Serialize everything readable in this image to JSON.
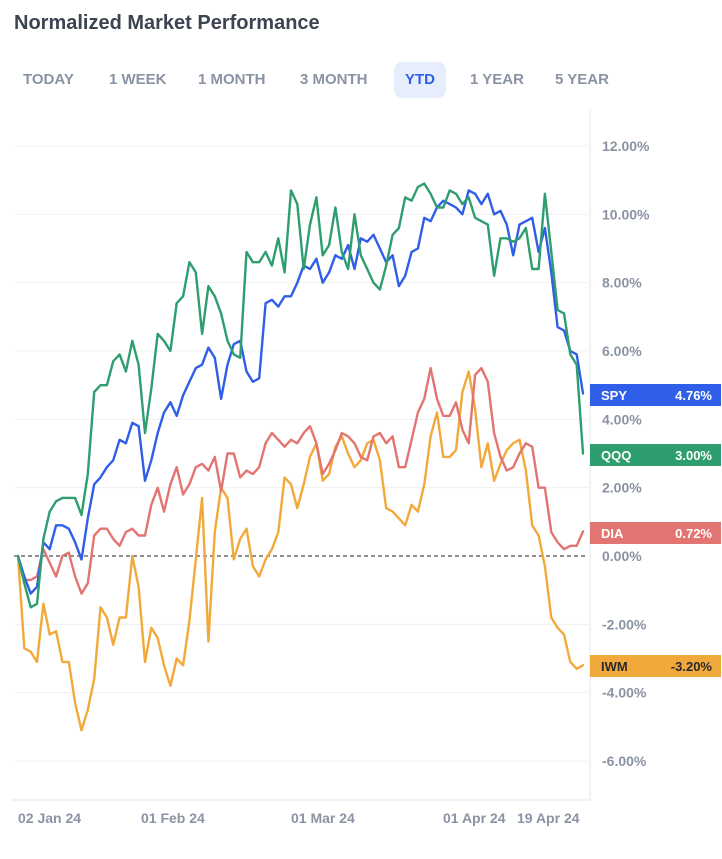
{
  "header": {
    "title": "Normalized Market Performance"
  },
  "tabs": [
    {
      "label": "TODAY",
      "active": false
    },
    {
      "label": "1 WEEK",
      "active": false
    },
    {
      "label": "1 MONTH",
      "active": false
    },
    {
      "label": "3 MONTH",
      "active": false
    },
    {
      "label": "YTD",
      "active": true
    },
    {
      "label": "1 YEAR",
      "active": false
    },
    {
      "label": "5 YEAR",
      "active": false
    }
  ],
  "chart_data": {
    "type": "line",
    "title": "Normalized Market Performance",
    "ylim": [
      -7,
      12.5
    ],
    "y_ticks": [
      12,
      10,
      8,
      6,
      4,
      2,
      0,
      -2,
      -4,
      -6
    ],
    "y_tick_labels": [
      "12.00%",
      "10.00%",
      "8.00%",
      "6.00%",
      "4.00%",
      "2.00%",
      "0.00%",
      "-2.00%",
      "-4.00%",
      "-6.00%"
    ],
    "x_tick_labels": [
      "02 Jan 24",
      "01 Feb 24",
      "01 Mar 24",
      "01 Apr 24",
      "19 Apr 24"
    ],
    "baseline": 0,
    "grid": true,
    "series": [
      {
        "name": "SPY",
        "color": "#2f5ee8",
        "last_label": "4.76%",
        "values": [
          0,
          -0.6,
          -1.1,
          -0.9,
          0.4,
          0.2,
          0.9,
          0.9,
          0.8,
          0.4,
          -0.1,
          1.1,
          2.1,
          2.3,
          2.6,
          2.8,
          3.4,
          3.3,
          3.9,
          3.8,
          2.2,
          2.8,
          3.6,
          4.2,
          4.5,
          4.1,
          4.7,
          5.1,
          5.5,
          5.6,
          6.1,
          5.8,
          4.6,
          5.6,
          6.2,
          6.3,
          5.4,
          5.1,
          5.2,
          7.4,
          7.5,
          7.3,
          7.6,
          7.6,
          8.0,
          8.5,
          8.4,
          8.7,
          8.0,
          8.3,
          8.8,
          8.7,
          9.1,
          8.4,
          9.3,
          9.2,
          9.4,
          9.0,
          8.6,
          8.8,
          7.9,
          8.2,
          8.9,
          9.0,
          9.9,
          9.8,
          10.2,
          10.4,
          10.3,
          10.2,
          10.0,
          10.7,
          10.6,
          10.3,
          10.6,
          10.0,
          10.1,
          9.7,
          8.8,
          9.7,
          9.8,
          9.9,
          8.9,
          9.6,
          8.3,
          6.7,
          6.6,
          6.0,
          5.9,
          4.76
        ]
      },
      {
        "name": "QQQ",
        "color": "#2e9e6f",
        "last_label": "3.00%",
        "values": [
          0,
          -0.8,
          -1.5,
          -1.4,
          0.5,
          1.3,
          1.6,
          1.7,
          1.7,
          1.7,
          1.2,
          2.4,
          4.8,
          5.0,
          5.0,
          5.7,
          5.9,
          5.4,
          6.3,
          5.6,
          3.6,
          4.9,
          6.5,
          6.3,
          6.0,
          7.4,
          7.6,
          8.6,
          8.3,
          6.5,
          7.9,
          7.6,
          7.1,
          6.3,
          5.9,
          5.8,
          8.9,
          8.6,
          8.6,
          8.9,
          8.5,
          9.3,
          8.3,
          10.7,
          10.3,
          8.4,
          9.7,
          10.5,
          8.8,
          9.1,
          10.2,
          8.9,
          8.4,
          10.0,
          8.8,
          8.4,
          8.0,
          7.8,
          8.5,
          9.4,
          9.6,
          10.5,
          10.4,
          10.8,
          10.9,
          10.6,
          10.2,
          10.2,
          10.7,
          10.6,
          10.3,
          10.5,
          9.9,
          9.8,
          9.7,
          8.2,
          9.3,
          9.3,
          9.2,
          9.3,
          9.6,
          8.4,
          8.4,
          10.6,
          8.9,
          7.2,
          7.1,
          5.9,
          5.6,
          3.0
        ]
      },
      {
        "name": "DIA",
        "color": "#e27571",
        "last_label": "0.72%",
        "values": [
          0,
          -0.7,
          -0.7,
          -0.6,
          0.2,
          -0.2,
          -0.6,
          0.0,
          0.1,
          -0.6,
          -1.1,
          -0.8,
          0.6,
          0.8,
          0.8,
          0.5,
          0.3,
          0.7,
          0.8,
          0.6,
          0.6,
          1.5,
          2.0,
          1.3,
          2.1,
          2.6,
          1.8,
          2.1,
          2.6,
          2.7,
          2.5,
          2.9,
          1.9,
          3.0,
          3.0,
          2.3,
          2.5,
          2.4,
          2.6,
          3.3,
          3.6,
          3.4,
          3.2,
          3.4,
          3.3,
          3.6,
          3.8,
          3.3,
          2.4,
          2.7,
          3.1,
          3.6,
          3.5,
          3.3,
          2.9,
          2.8,
          3.5,
          3.6,
          3.3,
          3.5,
          2.6,
          2.6,
          3.4,
          4.2,
          4.6,
          5.5,
          4.6,
          4.1,
          4.1,
          4.5,
          3.7,
          3.3,
          5.3,
          5.5,
          5.1,
          3.6,
          2.9,
          2.5,
          2.6,
          3.0,
          3.3,
          3.2,
          2.0,
          2.0,
          0.7,
          0.4,
          0.2,
          0.3,
          0.3,
          0.72
        ]
      },
      {
        "name": "IWM",
        "color": "#f2a93b",
        "last_label": "-3.20%",
        "values": [
          0,
          -2.7,
          -2.8,
          -3.1,
          -1.4,
          -2.3,
          -2.2,
          -3.1,
          -3.1,
          -4.3,
          -5.1,
          -4.5,
          -3.6,
          -1.5,
          -1.8,
          -2.6,
          -1.8,
          -1.8,
          0,
          -0.9,
          -3.1,
          -2.1,
          -2.4,
          -3.2,
          -3.8,
          -3.0,
          -3.2,
          -1.9,
          -0.1,
          1.7,
          -2.5,
          0.7,
          2.0,
          1.7,
          -0.1,
          0.5,
          0.8,
          -0.3,
          -0.6,
          -0.1,
          0.2,
          0.7,
          2.3,
          2.1,
          1.4,
          2.1,
          2.9,
          3.3,
          2.2,
          2.4,
          3.2,
          3.5,
          3.0,
          2.6,
          2.8,
          3.3,
          3.4,
          2.8,
          1.4,
          1.3,
          1.1,
          0.9,
          1.5,
          1.3,
          2.1,
          3.5,
          4.2,
          2.9,
          2.9,
          3.1,
          4.8,
          5.4,
          4.3,
          2.6,
          3.3,
          2.2,
          2.7,
          3.1,
          3.3,
          3.4,
          2.5,
          0.9,
          0.6,
          -0.3,
          -1.8,
          -2.1,
          -2.3,
          -3.1,
          -3.3,
          -3.2
        ]
      }
    ]
  }
}
